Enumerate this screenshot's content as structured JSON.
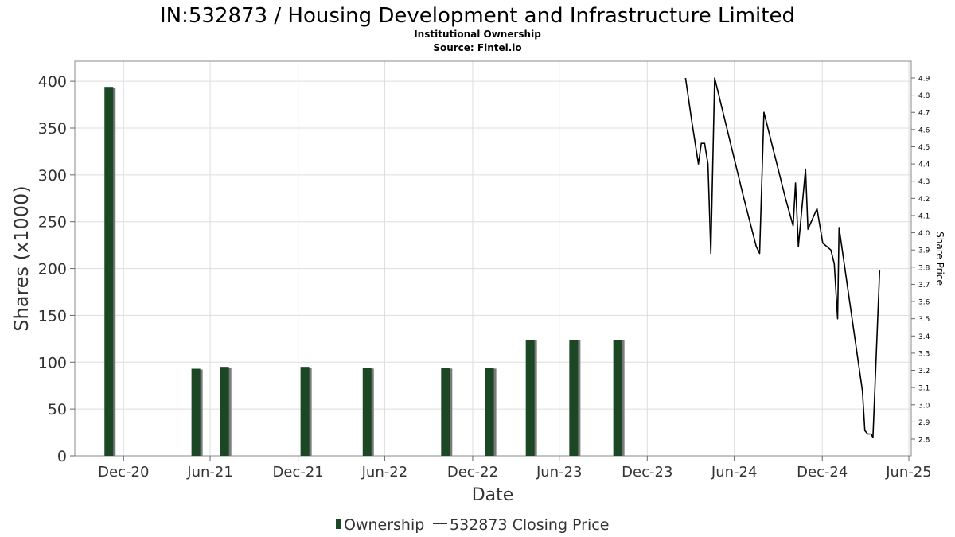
{
  "title": "IN:532873 / Housing Development and Infrastructure Limited",
  "subtitle": "Institutional Ownership",
  "source": "Source: Fintel.io",
  "colors": {
    "bar": "#1b4725",
    "bar_shadow": "#7a7a7a",
    "price_line": "#000000",
    "grid": "#dddddd",
    "frame": "#888888"
  },
  "legend": {
    "ownership_label": "Ownership",
    "price_label": "532873 Closing Price"
  },
  "chart_data": {
    "type": "bar",
    "title": "IN:532873 / Housing Development and Infrastructure Limited",
    "subtitle": "Institutional Ownership",
    "xlabel": "Date",
    "ylabel": "Shares (x1000)",
    "y2label": "Share Price",
    "ylim": [
      0,
      412
    ],
    "y2lim": [
      2.72,
      4.96
    ],
    "xlim": [
      "2020-09-20",
      "2025-07-05"
    ],
    "grid": true,
    "legend_position": "bottom",
    "x_ticks": [
      {
        "label": "Dec-20",
        "date": "2020-12-31"
      },
      {
        "label": "Jun-21",
        "date": "2021-06-30"
      },
      {
        "label": "Dec-21",
        "date": "2021-12-31"
      },
      {
        "label": "Jun-22",
        "date": "2022-06-30"
      },
      {
        "label": "Dec-22",
        "date": "2022-12-31"
      },
      {
        "label": "Jun-23",
        "date": "2023-06-30"
      },
      {
        "label": "Dec-23",
        "date": "2023-12-31"
      },
      {
        "label": "Jun-24",
        "date": "2024-06-30"
      },
      {
        "label": "Dec-24",
        "date": "2024-12-31"
      },
      {
        "label": "Jun-25",
        "date": "2025-06-30"
      }
    ],
    "y_ticks": [
      "0",
      "50",
      "100",
      "150",
      "200",
      "250",
      "300",
      "350",
      "400"
    ],
    "y2_ticks": [
      "2.8",
      "2.9",
      "3.0",
      "3.1",
      "3.2",
      "3.3",
      "3.4",
      "3.5",
      "3.6",
      "3.7",
      "3.8",
      "3.9",
      "4.0",
      "4.1",
      "4.2",
      "4.3",
      "4.4",
      "4.5",
      "4.6",
      "4.7",
      "4.8",
      "4.9"
    ],
    "series": [
      {
        "name": "Ownership",
        "kind": "bar",
        "points": [
          {
            "date": "2020-12-01",
            "value": 394
          },
          {
            "date": "2021-06-01",
            "value": 93
          },
          {
            "date": "2021-07-31",
            "value": 95
          },
          {
            "date": "2022-01-15",
            "value": 95
          },
          {
            "date": "2022-05-25",
            "value": 94
          },
          {
            "date": "2022-11-05",
            "value": 94
          },
          {
            "date": "2023-02-05",
            "value": 94
          },
          {
            "date": "2023-05-01",
            "value": 124
          },
          {
            "date": "2023-07-31",
            "value": 124
          },
          {
            "date": "2023-10-31",
            "value": 124
          }
        ]
      },
      {
        "name": "532873 Closing Price",
        "kind": "line",
        "points": [
          {
            "date": "2024-03-20",
            "value": 4.9
          },
          {
            "date": "2024-04-02",
            "value": 4.65
          },
          {
            "date": "2024-04-16",
            "value": 4.4
          },
          {
            "date": "2024-04-22",
            "value": 4.52
          },
          {
            "date": "2024-04-29",
            "value": 4.52
          },
          {
            "date": "2024-05-06",
            "value": 4.4
          },
          {
            "date": "2024-05-12",
            "value": 3.88
          },
          {
            "date": "2024-05-20",
            "value": 4.9
          },
          {
            "date": "2024-07-20",
            "value": 4.2
          },
          {
            "date": "2024-08-15",
            "value": 3.92
          },
          {
            "date": "2024-08-22",
            "value": 3.88
          },
          {
            "date": "2024-08-31",
            "value": 4.7
          },
          {
            "date": "2024-10-15",
            "value": 4.2
          },
          {
            "date": "2024-10-31",
            "value": 4.04
          },
          {
            "date": "2024-11-05",
            "value": 4.29
          },
          {
            "date": "2024-11-11",
            "value": 3.92
          },
          {
            "date": "2024-11-26",
            "value": 4.37
          },
          {
            "date": "2024-12-01",
            "value": 4.02
          },
          {
            "date": "2024-12-20",
            "value": 4.14
          },
          {
            "date": "2025-01-01",
            "value": 3.94
          },
          {
            "date": "2025-01-18",
            "value": 3.9
          },
          {
            "date": "2025-01-25",
            "value": 3.82
          },
          {
            "date": "2025-02-01",
            "value": 3.5
          },
          {
            "date": "2025-02-04",
            "value": 4.03
          },
          {
            "date": "2025-03-25",
            "value": 3.08
          },
          {
            "date": "2025-03-30",
            "value": 2.85
          },
          {
            "date": "2025-04-05",
            "value": 2.83
          },
          {
            "date": "2025-04-12",
            "value": 2.83
          },
          {
            "date": "2025-04-16",
            "value": 2.81
          },
          {
            "date": "2025-04-30",
            "value": 3.78
          }
        ]
      }
    ]
  }
}
